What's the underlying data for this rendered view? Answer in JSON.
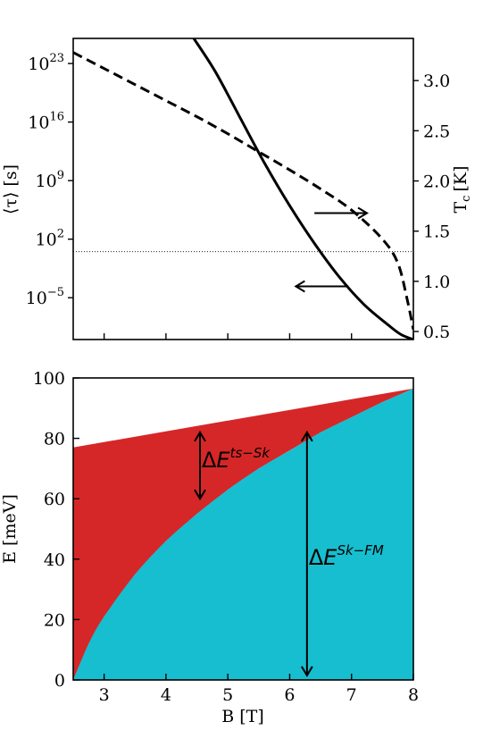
{
  "chart_data": [
    {
      "type": "line",
      "panel": "top",
      "xlim": [
        2.5,
        8.0
      ],
      "x_ticks": [
        3,
        4,
        5,
        6,
        7,
        8
      ],
      "left_axis": {
        "label_main": "⟨τ⟩ [s]",
        "scale": "log",
        "ylim_log10": [
          -10,
          26
        ],
        "ticks": [
          {
            "log10": 23,
            "base": "10",
            "exp": "23"
          },
          {
            "log10": 16,
            "base": "10",
            "exp": "16"
          },
          {
            "log10": 9,
            "base": "10",
            "exp": "9"
          },
          {
            "log10": 2,
            "base": "10",
            "exp": "2"
          },
          {
            "log10": -5,
            "base": "10",
            "exp": "−5"
          }
        ]
      },
      "right_axis": {
        "label_main": "T",
        "label_sub": "c",
        "label_unit": "[K]",
        "ylim": [
          0.42,
          3.42
        ],
        "ticks": [
          "3.0",
          "2.5",
          "2.0",
          "1.5",
          "1.0",
          "0.5"
        ],
        "tick_values": [
          3.0,
          2.5,
          2.0,
          1.5,
          1.0,
          0.5
        ]
      },
      "series": [
        {
          "axis": "left",
          "style": "solid",
          "x": [
            4.45,
            4.8,
            5.2,
            5.6,
            6.0,
            6.4,
            6.8,
            7.2,
            7.6,
            7.8,
            8.0
          ],
          "log10_y": [
            26,
            22,
            16.5,
            11,
            6,
            1.5,
            -2.5,
            -5.8,
            -8.3,
            -9.4,
            -10
          ]
        },
        {
          "axis": "right",
          "style": "dashed",
          "x": [
            2.5,
            3.0,
            3.5,
            4.0,
            4.5,
            5.0,
            5.5,
            6.0,
            6.5,
            7.0,
            7.5,
            7.75,
            7.9,
            8.0
          ],
          "y": [
            3.28,
            3.12,
            2.96,
            2.8,
            2.64,
            2.47,
            2.29,
            2.11,
            1.92,
            1.71,
            1.42,
            1.18,
            0.82,
            0.52
          ]
        }
      ],
      "hline": {
        "axis": "left",
        "log10_y": 0.5,
        "style": "dotted"
      },
      "arrows": [
        {
          "direction": "right",
          "x_from": 6.4,
          "x_to": 7.25,
          "y_right": 1.68
        },
        {
          "direction": "left",
          "x_from": 6.95,
          "x_to": 6.1,
          "y_right": 0.95
        }
      ]
    },
    {
      "type": "area",
      "panel": "bottom",
      "xlabel": "B [T]",
      "ylabel": "E [meV]",
      "xlim": [
        2.5,
        8.0
      ],
      "ylim": [
        0,
        100
      ],
      "x_ticks": [
        "3",
        "4",
        "5",
        "6",
        "7",
        "8"
      ],
      "x_tick_values": [
        3,
        4,
        5,
        6,
        7,
        8
      ],
      "y_ticks": [
        "0",
        "20",
        "40",
        "60",
        "80",
        "100"
      ],
      "y_tick_values": [
        0,
        20,
        40,
        60,
        80,
        100
      ],
      "upper_colors": {
        "red": "#d62728",
        "cyan": "#17becf"
      },
      "series": [
        {
          "fill": "#d62728",
          "x": [
            2.5,
            8.0
          ],
          "y": [
            77,
            96.5
          ]
        },
        {
          "fill": "#17becf",
          "x": [
            2.5,
            2.75,
            3.0,
            3.5,
            4.0,
            4.5,
            5.0,
            5.5,
            6.0,
            6.5,
            7.0,
            7.5,
            8.0
          ],
          "y": [
            0,
            12,
            21,
            35,
            46,
            55,
            63,
            70,
            76,
            82,
            87,
            92,
            96.5
          ]
        }
      ],
      "annotations": [
        {
          "main": "Δ",
          "var": "E",
          "sup": "ts−Sk",
          "x": 4.55,
          "y_from": 60,
          "y_to": 82
        },
        {
          "main": "Δ",
          "var": "E",
          "sup": "Sk−FM",
          "x": 6.28,
          "y_from": 1.5,
          "y_to": 82
        }
      ]
    }
  ]
}
